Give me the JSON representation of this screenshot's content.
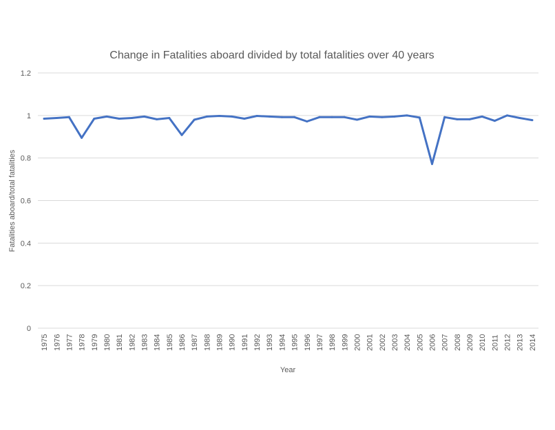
{
  "chart_data": {
    "type": "line",
    "title": "Change in Fatalities aboard divided by total fatalities over 40 years",
    "xlabel": "Year",
    "ylabel": "Fatalities aboard/total fatalities",
    "ylim": [
      0,
      1.2
    ],
    "yticks": [
      "0",
      "0.2",
      "0.4",
      "0.6",
      "0.8",
      "1",
      "1.2"
    ],
    "grid": true,
    "legend": "none",
    "colors": {
      "series": "#4472C4",
      "grid": "#D9D9D9",
      "text": "#595959"
    },
    "categories": [
      "1975",
      "1976",
      "1977",
      "1978",
      "1979",
      "1980",
      "1981",
      "1982",
      "1983",
      "1984",
      "1985",
      "1986",
      "1987",
      "1988",
      "1989",
      "1990",
      "1991",
      "1992",
      "1993",
      "1994",
      "1995",
      "1996",
      "1997",
      "1998",
      "1999",
      "2000",
      "2001",
      "2002",
      "2003",
      "2004",
      "2005",
      "2006",
      "2007",
      "2008",
      "2009",
      "2010",
      "2011",
      "2012",
      "2013",
      "2014"
    ],
    "series": [
      {
        "values": [
          0.985,
          0.988,
          0.992,
          0.895,
          0.985,
          0.995,
          0.985,
          0.988,
          0.995,
          0.982,
          0.988,
          0.908,
          0.98,
          0.995,
          0.998,
          0.995,
          0.985,
          0.998,
          0.995,
          0.992,
          0.992,
          0.972,
          0.992,
          0.992,
          0.992,
          0.98,
          0.995,
          0.992,
          0.995,
          1.0,
          0.99,
          0.772,
          0.992,
          0.982,
          0.982,
          0.995,
          0.975,
          1.0,
          0.988,
          0.978
        ]
      }
    ]
  }
}
